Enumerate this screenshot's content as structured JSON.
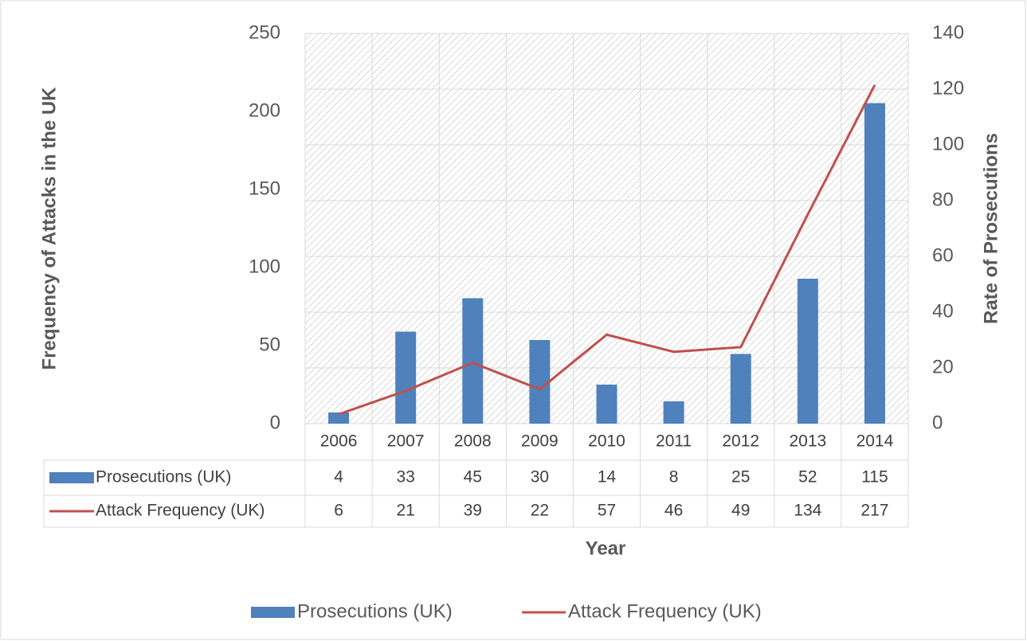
{
  "chart_data": {
    "type": "combo",
    "x_label": "Year",
    "y_label": "Frequency of Attacks in the UK",
    "y2_label": "Rate of Prosecutions",
    "categories": [
      "2006",
      "2007",
      "2008",
      "2009",
      "2010",
      "2011",
      "2012",
      "2013",
      "2014"
    ],
    "series": [
      {
        "name": "Prosecutions (UK)",
        "type": "bar",
        "axis": "y2",
        "color": "#4f81bd",
        "values": [
          4,
          33,
          45,
          30,
          14,
          8,
          25,
          52,
          115
        ]
      },
      {
        "name": "Attack Frequency (UK)",
        "type": "line",
        "axis": "y",
        "color": "#c0504d",
        "values": [
          6,
          21,
          39,
          22,
          57,
          46,
          49,
          134,
          217
        ]
      }
    ],
    "ylim": [
      0,
      250
    ],
    "yticks": [
      0,
      50,
      100,
      150,
      200,
      250
    ],
    "y2lim": [
      0,
      140
    ],
    "y2ticks": [
      0,
      20,
      40,
      60,
      80,
      100,
      120,
      140
    ],
    "grid": "y2",
    "legend": "bottom",
    "data_table": true
  }
}
